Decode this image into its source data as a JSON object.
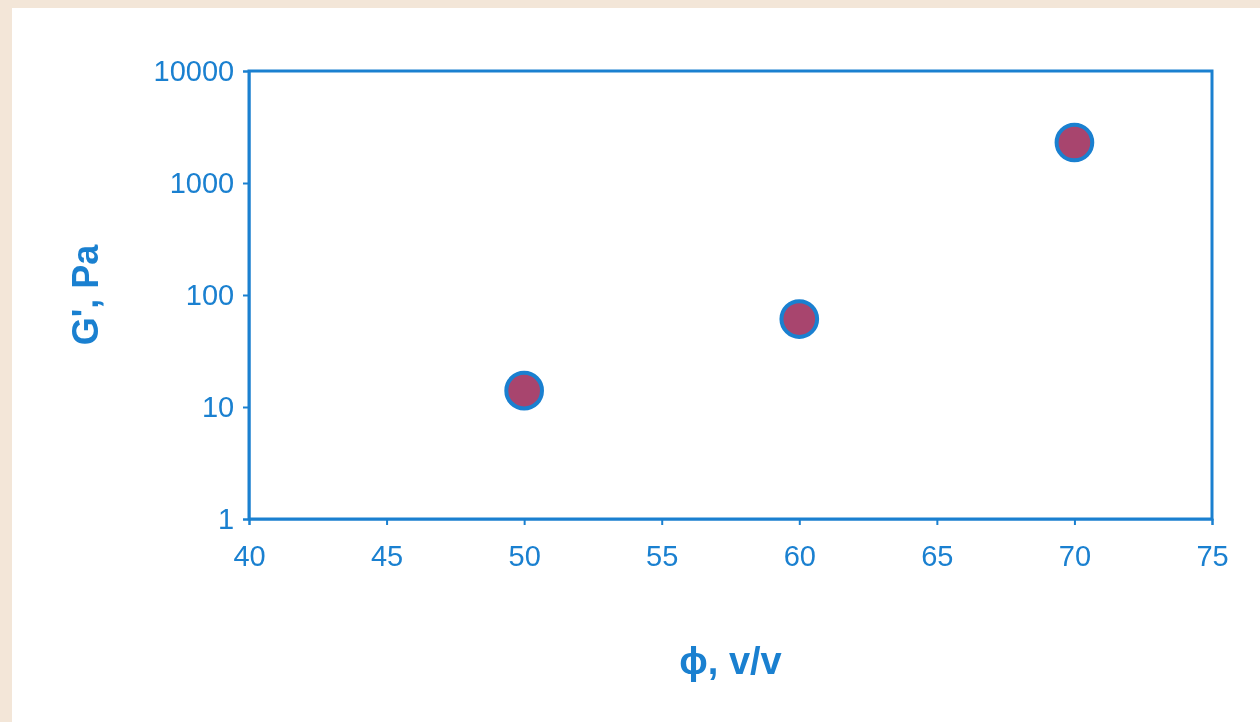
{
  "chart_data": {
    "type": "scatter",
    "xlabel": "ϕ, v/v",
    "ylabel": "G', Pa",
    "x": [
      50,
      60,
      70
    ],
    "series": [
      {
        "color": "#a8456e",
        "values": [
          14,
          61,
          2300
        ]
      }
    ],
    "xlim": [
      40,
      75
    ],
    "xticks": [
      40,
      45,
      50,
      55,
      60,
      65,
      70,
      75
    ],
    "ylim": [
      1,
      10000
    ],
    "yticks": [
      1,
      10,
      100,
      1000,
      10000
    ],
    "log": "y",
    "grid": false,
    "marker": "circle"
  }
}
